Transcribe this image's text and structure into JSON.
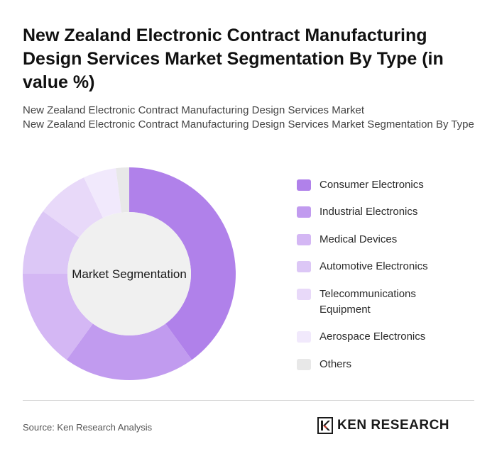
{
  "header": {
    "title": "New Zealand Electronic Contract Manufacturing Design Services Market Segmentation By Type (in value %)",
    "subtitle_line1": "New Zealand Electronic Contract Manufacturing Design Services Market",
    "subtitle_line2": "New Zealand Electronic Contract Manufacturing Design Services Market Segmentation By Type"
  },
  "chart_data": {
    "type": "pie",
    "donut": true,
    "center_label": "Market Segmentation",
    "legend_position": "right",
    "categories": [
      "Consumer Electronics",
      "Industrial Electronics",
      "Medical Devices",
      "Automotive Electronics",
      "Telecommunications Equipment",
      "Aerospace Electronics",
      "Others"
    ],
    "values": [
      40,
      20,
      15,
      10,
      8,
      5,
      2
    ],
    "colors": [
      "#b081ea",
      "#c19bef",
      "#d4b7f4",
      "#dcc7f6",
      "#e8d9f9",
      "#f1e9fc",
      "#e8e8e8"
    ]
  },
  "footer": {
    "source": "Source: Ken Research Analysis",
    "logo_text": "KEN RESEARCH",
    "logo_icon": "ken-research-k-icon"
  }
}
